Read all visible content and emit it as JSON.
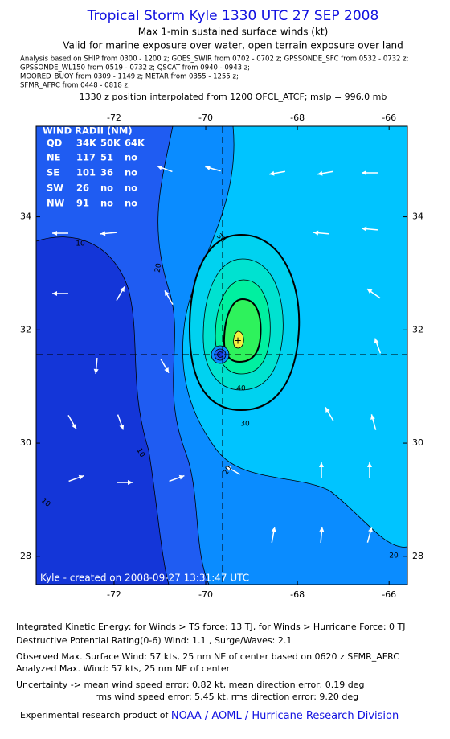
{
  "header": {
    "title": "Tropical Storm Kyle 1330 UTC 27 SEP 2008",
    "subtitle": "Max 1-min sustained surface winds (kt)",
    "validity": "Valid for marine exposure over water, open terrain exposure over land",
    "analysis_lines": [
      "Analysis based on   SHIP from 0300 - 1200 z;  GOES_SWIR from 0702 - 0702 z;  GPSSONDE_SFC from 0532 - 0732 z;",
      "GPSSONDE_WL150 from 0519 - 0732 z;  QSCAT from 0940 - 0943 z;",
      "MOORED_BUOY from 0309 - 1149 z;  METAR from 0355 - 1255 z;",
      "SFMR_AFRC from 0448 - 0818 z;"
    ],
    "position_note": "1330 z position interpolated from 1200 OFCL_ATCF; mslp = 996.0 mb"
  },
  "chart_data": {
    "type": "contour",
    "xlim": [
      -73.7,
      -65.6
    ],
    "ylim": [
      27.5,
      35.6
    ],
    "xticks": [
      -72,
      -70,
      -68,
      -66
    ],
    "yticks": [
      28,
      30,
      32,
      34
    ],
    "contour_labels": [
      10,
      20,
      30,
      10,
      10,
      20,
      40,
      30,
      20
    ],
    "credit": "Kyle - created on 2008-09-27 13:31:47 UTC",
    "wind_radii": {
      "title": "WIND RADII (NM)",
      "header": [
        "QD",
        "34K",
        "50K",
        "64K"
      ],
      "rows": [
        [
          "NE",
          "117",
          "51",
          "no"
        ],
        [
          "SE",
          "101",
          "36",
          "no"
        ],
        [
          "SW",
          "26",
          "no",
          "no"
        ],
        [
          "NW",
          "91",
          "no",
          "no"
        ]
      ]
    }
  },
  "footer": {
    "ike": "Integrated Kinetic Energy:  for Winds > TS force: 13 TJ,  for Winds > Hurricane Force: 0 TJ",
    "dpr": "Destructive Potential Rating(0-6)   Wind: 1.1 , Surge/Waves: 2.1",
    "observed": "Observed Max. Surface Wind: 57 kts, 25 nm NE of center based on 0620 z SFMR_AFRC",
    "analyzed": "Analyzed Max. Wind: 57 kts, 25 nm NE of center",
    "uncertainty_1": "Uncertainty -> mean wind speed error: 0.82 kt,   mean direction error: 0.19 deg",
    "uncertainty_2": "rms wind speed error: 5.45 kt,   rms direction error: 9.20 deg",
    "credit_prefix": "Experimental research product of",
    "credit_org": "NOAA / AOML / Hurricane Research Division"
  }
}
